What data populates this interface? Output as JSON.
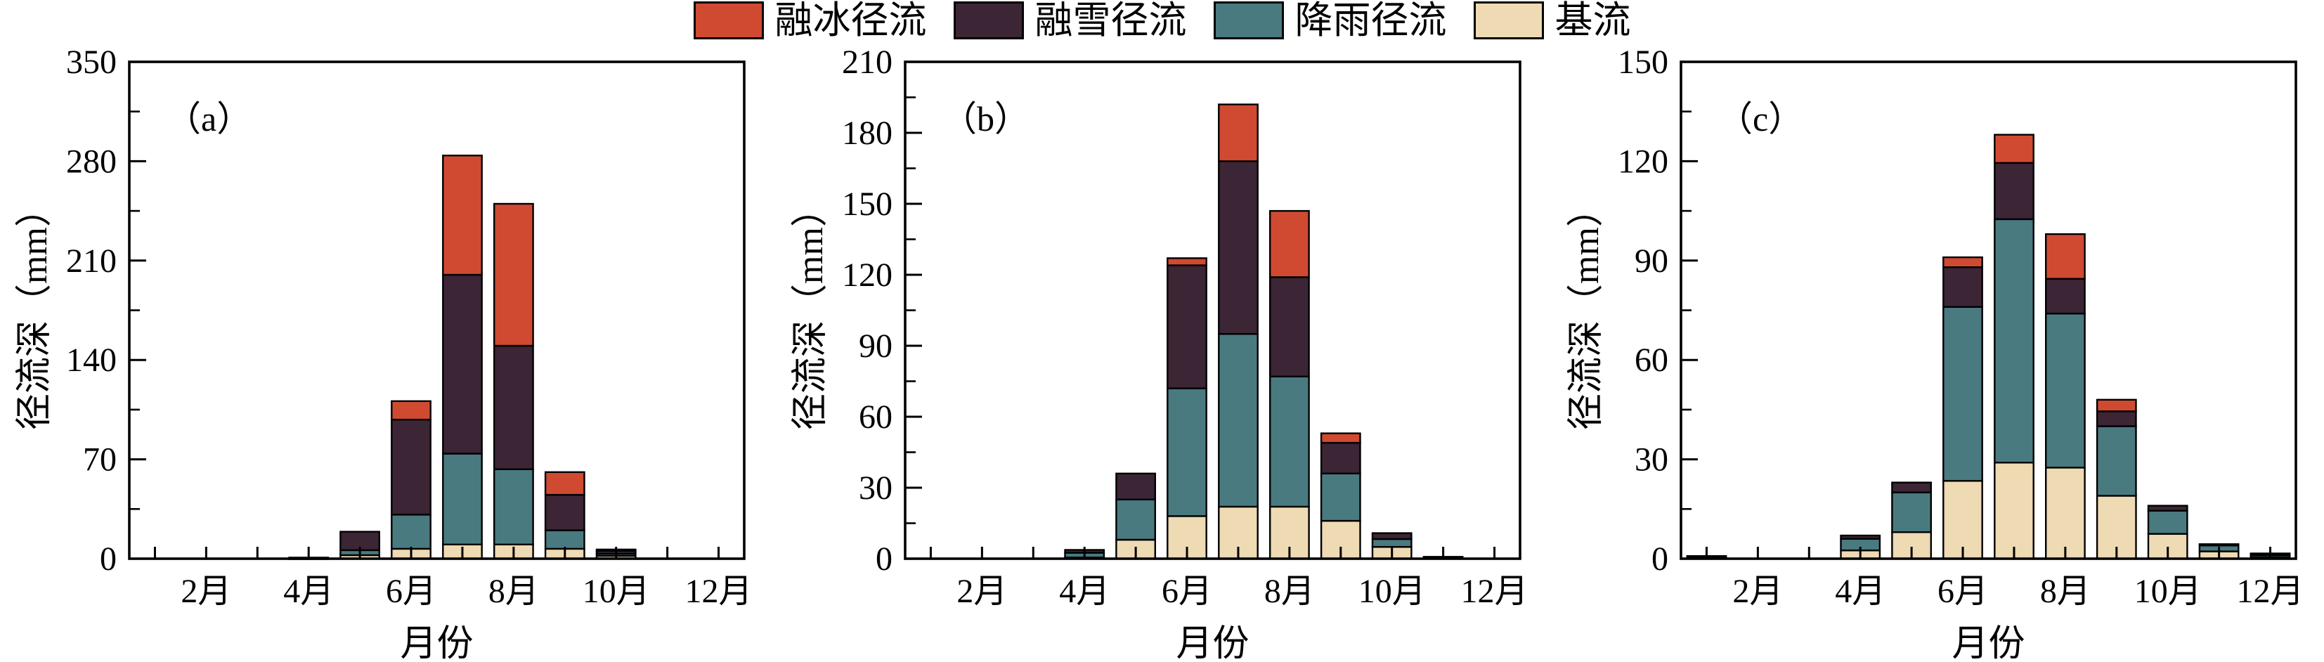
{
  "figure": {
    "background": "#ffffff",
    "axis_color": "#000000",
    "bar_border_color": "#000000"
  },
  "legend": {
    "items": [
      {
        "label": "融冰径流",
        "color": "#d04a32"
      },
      {
        "label": "融雪径流",
        "color": "#3c2535"
      },
      {
        "label": "降雨径流",
        "color": "#497a80"
      },
      {
        "label": "基流",
        "color": "#eedab3"
      }
    ]
  },
  "chart_data": [
    {
      "type": "bar",
      "stacked": true,
      "panel_label": "（a）",
      "xlabel": "月份",
      "ylabel": "径流深（mm）",
      "ylim": [
        0,
        350
      ],
      "ytick_step": 70,
      "minor_yticks": true,
      "grid": false,
      "categories": [
        "1月",
        "2月",
        "3月",
        "4月",
        "5月",
        "6月",
        "7月",
        "8月",
        "9月",
        "10月",
        "11月",
        "12月"
      ],
      "labeled_categories": [
        "2月",
        "4月",
        "6月",
        "8月",
        "10月",
        "12月"
      ],
      "series": [
        {
          "name": "基流",
          "values": [
            0,
            0,
            0,
            0.2,
            2.5,
            7,
            10,
            10,
            7,
            2,
            0,
            0
          ]
        },
        {
          "name": "降雨径流",
          "values": [
            0,
            0,
            0,
            0.2,
            3.5,
            24,
            64,
            53,
            13,
            1.5,
            0,
            0
          ]
        },
        {
          "name": "融雪径流",
          "values": [
            0,
            0,
            0,
            0.4,
            13,
            67,
            126,
            87,
            25,
            2,
            0,
            0
          ]
        },
        {
          "name": "融冰径流",
          "values": [
            0,
            0,
            0,
            0,
            0,
            13,
            84,
            100,
            16,
            1,
            0,
            0
          ]
        }
      ]
    },
    {
      "type": "bar",
      "stacked": true,
      "panel_label": "（b）",
      "xlabel": "月份",
      "ylabel": "径流深（mm）",
      "ylim": [
        0,
        210
      ],
      "ytick_step": 30,
      "minor_yticks": true,
      "grid": false,
      "categories": [
        "1月",
        "2月",
        "3月",
        "4月",
        "5月",
        "6月",
        "7月",
        "8月",
        "9月",
        "10月",
        "11月",
        "12月"
      ],
      "labeled_categories": [
        "2月",
        "4月",
        "6月",
        "8月",
        "10月",
        "12月"
      ],
      "series": [
        {
          "name": "基流",
          "values": [
            0,
            0,
            0,
            0.5,
            8,
            18,
            22,
            22,
            16,
            5,
            0.2,
            0
          ]
        },
        {
          "name": "降雨径流",
          "values": [
            0,
            0,
            0,
            2,
            17,
            54,
            73,
            55,
            20,
            3.3,
            0.2,
            0
          ]
        },
        {
          "name": "融雪径流",
          "values": [
            0,
            0,
            0,
            1.2,
            11,
            52,
            73,
            42,
            13,
            2.5,
            0.4,
            0
          ]
        },
        {
          "name": "融冰径流",
          "values": [
            0,
            0,
            0,
            0,
            0,
            3,
            24,
            28,
            4,
            0,
            0,
            0
          ]
        }
      ]
    },
    {
      "type": "bar",
      "stacked": true,
      "panel_label": "（c）",
      "xlabel": "月份",
      "ylabel": "径流深（mm）",
      "ylim": [
        0,
        150
      ],
      "ytick_step": 30,
      "minor_yticks": true,
      "grid": false,
      "categories": [
        "1月",
        "2月",
        "3月",
        "4月",
        "5月",
        "6月",
        "7月",
        "8月",
        "9月",
        "10月",
        "11月",
        "12月"
      ],
      "labeled_categories": [
        "2月",
        "4月",
        "6月",
        "8月",
        "10月",
        "12月"
      ],
      "series": [
        {
          "name": "基流",
          "values": [
            0.3,
            0,
            0,
            2.5,
            8,
            23.5,
            29,
            27.5,
            19,
            7.5,
            2.2,
            0.5
          ]
        },
        {
          "name": "降雨径流",
          "values": [
            0.2,
            0,
            0,
            3.5,
            12,
            52.5,
            73.5,
            46.5,
            21,
            7,
            1.8,
            0.6
          ]
        },
        {
          "name": "融雪径流",
          "values": [
            0.3,
            0,
            0,
            1,
            3,
            12,
            17,
            10.5,
            4.5,
            1.5,
            0.4,
            0.3
          ]
        },
        {
          "name": "融冰径流",
          "values": [
            0,
            0,
            0,
            0,
            0,
            3,
            8.5,
            13.5,
            3.5,
            0,
            0,
            0.2
          ]
        }
      ]
    }
  ]
}
